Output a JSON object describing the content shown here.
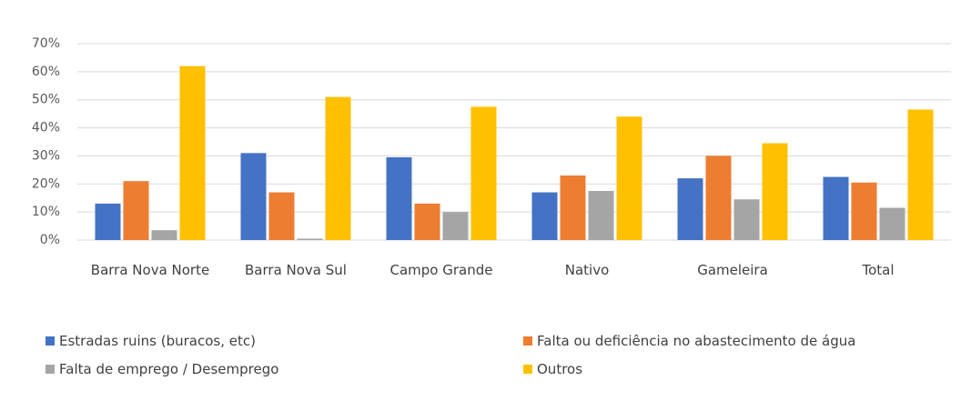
{
  "chart_data": {
    "type": "bar",
    "categories": [
      "Barra Nova Norte",
      "Barra Nova Sul",
      "Campo Grande",
      "Nativo",
      "Gameleira",
      "Total"
    ],
    "series": [
      {
        "name": "Estradas ruins (buracos, etc)",
        "color": "#4472c4",
        "values": [
          13,
          31,
          29.5,
          17,
          22,
          22.5
        ]
      },
      {
        "name": "Falta ou deficiência no abastecimento de água",
        "color": "#ed7d31",
        "values": [
          21,
          17,
          13,
          23,
          30,
          20.5
        ]
      },
      {
        "name": "Falta de emprego / Desemprego",
        "color": "#a5a5a5",
        "values": [
          3.5,
          0.5,
          10,
          17.5,
          14.5,
          11.5
        ]
      },
      {
        "name": "Outros",
        "color": "#ffc000",
        "values": [
          62,
          51,
          47.5,
          44,
          34.5,
          46.5
        ]
      }
    ],
    "ylim": [
      0,
      70
    ],
    "yticks": [
      {
        "value": 0,
        "label": "0%"
      },
      {
        "value": 10,
        "label": "10%"
      },
      {
        "value": 20,
        "label": "20%"
      },
      {
        "value": 30,
        "label": "30%"
      },
      {
        "value": 40,
        "label": "40%"
      },
      {
        "value": 50,
        "label": "50%"
      },
      {
        "value": 60,
        "label": "60%"
      },
      {
        "value": 70,
        "label": "70%"
      }
    ],
    "grid": true,
    "legend": "bottom"
  }
}
